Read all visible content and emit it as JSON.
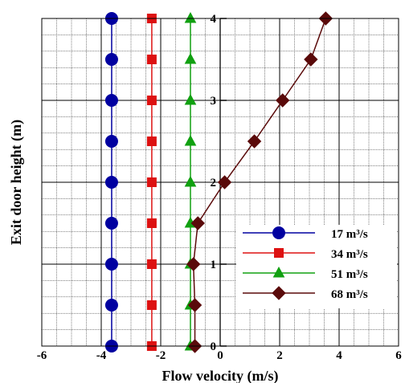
{
  "chart_data": {
    "type": "line",
    "xlabel": "Flow velocity (m/s)",
    "ylabel": "Exit door height (m)",
    "xlim": [
      -6,
      6
    ],
    "ylim": [
      0,
      4
    ],
    "xticks": [
      -6,
      -4,
      -2,
      0,
      2,
      4,
      6
    ],
    "xtick_labels": [
      "-6",
      "-4",
      "-2",
      "0",
      "2",
      "4",
      "6"
    ],
    "yticks": [
      0,
      1,
      2,
      3,
      4
    ],
    "ytick_labels": [
      "0",
      "1",
      "2",
      "3",
      "4"
    ],
    "grid": true,
    "legend_position": "right-middle",
    "series": [
      {
        "name": "17 m³/s",
        "color": "#0000a0",
        "marker": "circle",
        "x": [
          -3.65,
          -3.65,
          -3.65,
          -3.65,
          -3.65,
          -3.65,
          -3.65,
          -3.65,
          -3.65
        ],
        "y": [
          0,
          0.5,
          1.0,
          1.5,
          2.0,
          2.5,
          3.0,
          3.5,
          4.0
        ]
      },
      {
        "name": "34 m³/s",
        "color": "#dd1111",
        "marker": "square",
        "x": [
          -2.3,
          -2.3,
          -2.3,
          -2.3,
          -2.3,
          -2.3,
          -2.3,
          -2.3,
          -2.3
        ],
        "y": [
          0,
          0.5,
          1.0,
          1.5,
          2.0,
          2.5,
          3.0,
          3.5,
          4.0
        ]
      },
      {
        "name": "51 m³/s",
        "color": "#11a011",
        "marker": "triangle",
        "x": [
          -1.0,
          -1.0,
          -1.0,
          -1.0,
          -1.0,
          -1.0,
          -1.0,
          -1.0,
          -1.0
        ],
        "y": [
          0,
          0.5,
          1.0,
          1.5,
          2.0,
          2.5,
          3.0,
          3.5,
          4.0
        ]
      },
      {
        "name": "68 m³/s",
        "color": "#5a0a0a",
        "marker": "diamond",
        "x": [
          -0.85,
          -0.85,
          -0.9,
          -0.75,
          0.15,
          1.15,
          2.1,
          3.05,
          3.55
        ],
        "y": [
          0,
          0.5,
          1.0,
          1.5,
          2.0,
          2.5,
          3.0,
          3.5,
          4.0
        ]
      }
    ]
  }
}
